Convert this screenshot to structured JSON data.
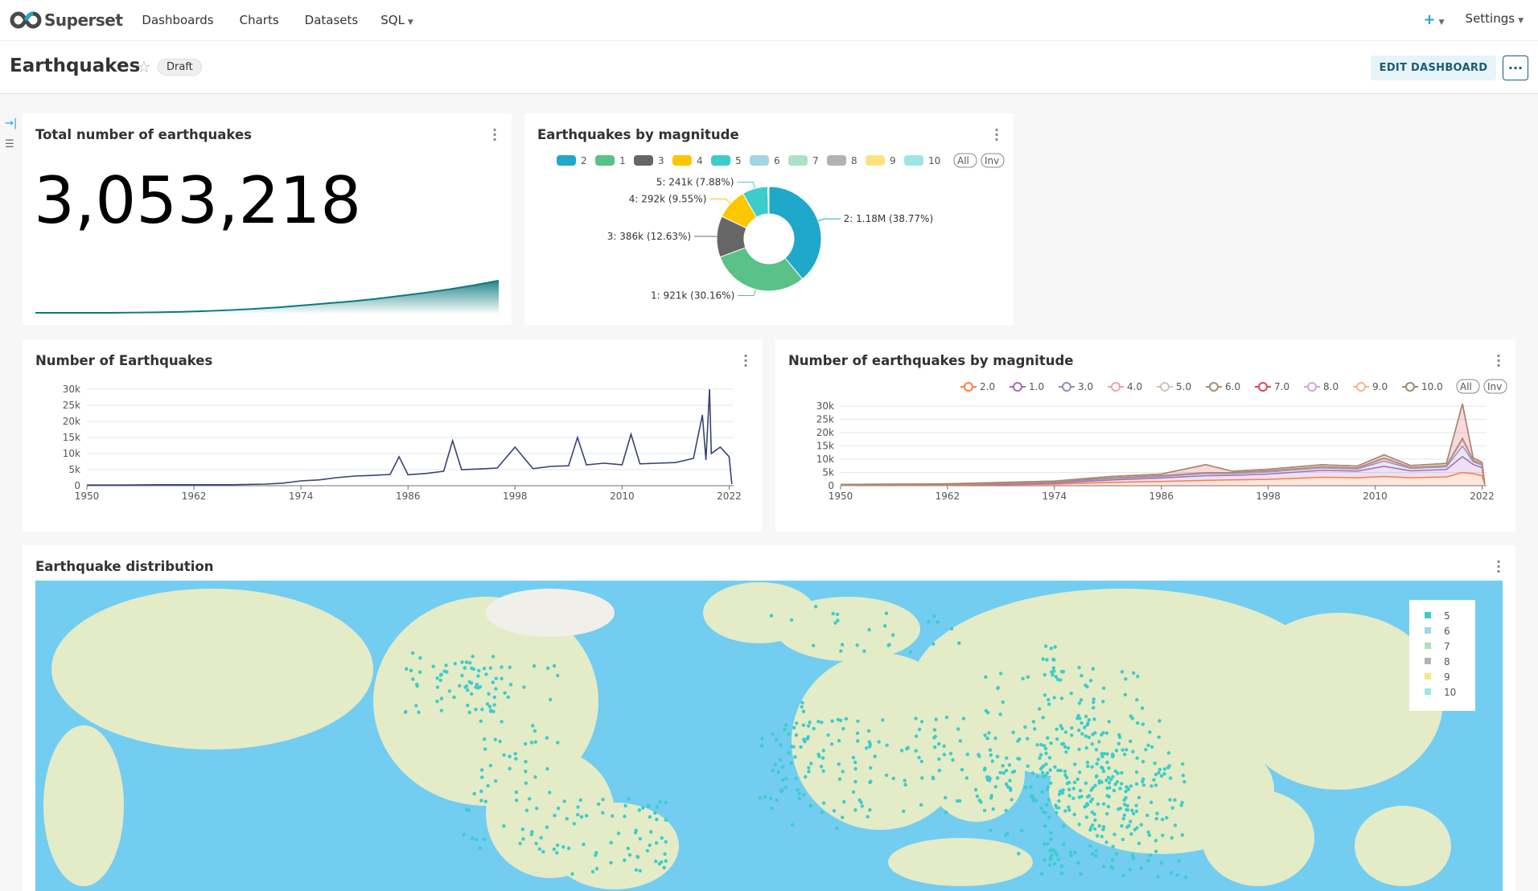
{
  "nav": {
    "brand": "Superset",
    "items": [
      "Dashboards",
      "Charts",
      "Datasets",
      "SQL"
    ],
    "plus": "+",
    "settings": "Settings"
  },
  "header": {
    "title": "Earthquakes",
    "status": "Draft",
    "edit": "EDIT DASHBOARD",
    "more": "···"
  },
  "big_number": {
    "title": "Total number of earthquakes",
    "value": "3,053,218",
    "trend": [
      0,
      0,
      0,
      0,
      1,
      2,
      4,
      7,
      11,
      16,
      22,
      30,
      38,
      46,
      56,
      68,
      80,
      94,
      110,
      128
    ]
  },
  "colors": {
    "accent": "#20a7c9",
    "trend": "#0c7a80"
  },
  "chart_data": [
    {
      "type": "pie",
      "title": "Earthquakes by magnitude",
      "donut": true,
      "slices": [
        {
          "name": "2",
          "value": 1180000,
          "label": "2: 1.18M (38.77%)",
          "color": "#1FA8C9"
        },
        {
          "name": "1",
          "value": 921000,
          "label": "1: 921k (30.16%)",
          "color": "#5AC189"
        },
        {
          "name": "3",
          "value": 386000,
          "label": "3: 386k (12.63%)",
          "color": "#666666"
        },
        {
          "name": "4",
          "value": 292000,
          "label": "4: 292k (9.55%)",
          "color": "#FCC700"
        },
        {
          "name": "5",
          "value": 241000,
          "label": "5: 241k (7.88%)",
          "color": "#3CCCCB"
        },
        {
          "name": "6",
          "value": 8000,
          "label": "",
          "color": "#A1D5E7"
        },
        {
          "name": "7",
          "value": 2000,
          "label": "",
          "color": "#ACE1C4"
        },
        {
          "name": "8",
          "value": 500,
          "label": "",
          "color": "#B2B2B2"
        },
        {
          "name": "9",
          "value": 100,
          "label": "",
          "color": "#FDE380"
        },
        {
          "name": "10",
          "value": 50,
          "label": "",
          "color": "#9EE5E5"
        }
      ],
      "legend_order": [
        "2",
        "1",
        "3",
        "4",
        "5",
        "6",
        "7",
        "8",
        "9",
        "10"
      ],
      "legend_buttons": [
        "All",
        "Inv"
      ],
      "legend": "top"
    },
    {
      "type": "line",
      "title": "Number of Earthquakes",
      "ylim": [
        0,
        30000
      ],
      "yticks": [
        "0",
        "5k",
        "10k",
        "15k",
        "20k",
        "25k",
        "30k"
      ],
      "xticks": [
        "1950",
        "1962",
        "1974",
        "1986",
        "1998",
        "2010",
        "2022"
      ],
      "xlim": [
        1950,
        2022.5
      ],
      "color": "#374375",
      "x": [
        1950,
        1954,
        1958,
        1962,
        1966,
        1970,
        1972,
        1974,
        1976,
        1978,
        1980,
        1982,
        1984,
        1985,
        1986,
        1988,
        1990,
        1991,
        1992,
        1994,
        1996,
        1998,
        2000,
        2002,
        2004,
        2005,
        2006,
        2008,
        2010,
        2011,
        2012,
        2014,
        2016,
        2018,
        2019,
        2019.4,
        2019.8,
        2020,
        2021,
        2022,
        2022.3
      ],
      "y": [
        200,
        200,
        300,
        300,
        300,
        500,
        800,
        1500,
        1800,
        2500,
        3000,
        3200,
        3500,
        9000,
        3400,
        3800,
        4500,
        14000,
        5000,
        5200,
        5500,
        12000,
        5300,
        6000,
        6200,
        15000,
        6500,
        7000,
        6500,
        16000,
        6800,
        7000,
        7200,
        8500,
        22000,
        8000,
        30000,
        10000,
        12000,
        9000,
        500
      ]
    },
    {
      "type": "line",
      "stacked": true,
      "area": true,
      "title": "Number of earthquakes by magnitude",
      "ylim": [
        0,
        30000
      ],
      "yticks": [
        "0",
        "5k",
        "10k",
        "15k",
        "20k",
        "25k",
        "30k"
      ],
      "xticks": [
        "1950",
        "1962",
        "1974",
        "1986",
        "1998",
        "2010",
        "2022"
      ],
      "xlim": [
        1950,
        2022.5
      ],
      "legend": "top",
      "legend_buttons": [
        "All",
        "Inv"
      ],
      "x": [
        1950,
        1962,
        1974,
        1980,
        1986,
        1991,
        1994,
        1998,
        2004,
        2008,
        2011,
        2014,
        2018,
        2019.8,
        2021,
        2022,
        2022.3
      ],
      "series": [
        {
          "name": "2.0",
          "color": "#FF7F44",
          "values": [
            100,
            150,
            600,
            1200,
            1600,
            2000,
            2200,
            2400,
            3200,
            3000,
            3500,
            3000,
            3300,
            5000,
            4500,
            3800,
            300
          ]
        },
        {
          "name": "1.0",
          "color": "#A868B7",
          "values": [
            50,
            80,
            400,
            900,
            1300,
            1800,
            1700,
            2000,
            2600,
            2500,
            3800,
            2600,
            2800,
            6000,
            3500,
            3000,
            100
          ]
        },
        {
          "name": "3.0",
          "color": "#8E8EBF",
          "values": [
            30,
            40,
            300,
            500,
            600,
            800,
            700,
            800,
            900,
            800,
            2000,
            900,
            1000,
            4000,
            1000,
            900,
            50
          ]
        },
        {
          "name": "4.0",
          "color": "#EFA1AA",
          "values": [
            10,
            20,
            100,
            150,
            200,
            250,
            250,
            300,
            300,
            300,
            800,
            300,
            300,
            2000,
            400,
            300,
            20
          ]
        },
        {
          "name": "5.0",
          "color": "#D3C1B3",
          "values": [
            5,
            10,
            40,
            60,
            70,
            80,
            80,
            90,
            100,
            100,
            300,
            100,
            100,
            800,
            150,
            100,
            10
          ]
        },
        {
          "name": "6.0",
          "color": "#A38F79",
          "values": [
            1,
            1,
            5,
            8,
            10,
            10,
            10,
            10,
            10,
            10,
            30,
            10,
            10,
            80,
            20,
            10,
            1
          ]
        },
        {
          "name": "7.0",
          "color": "#E04355",
          "values": [
            300,
            400,
            300,
            600,
            600,
            3000,
            500,
            600,
            800,
            700,
            1200,
            700,
            900,
            13000,
            900,
            700,
            20
          ]
        },
        {
          "name": "8.0",
          "color": "#D1A6DE",
          "values": [
            0,
            0,
            0,
            0,
            0,
            0,
            0,
            0,
            0,
            0,
            0,
            0,
            0,
            0,
            0,
            0,
            0
          ]
        },
        {
          "name": "9.0",
          "color": "#FDB28B",
          "values": [
            0,
            0,
            0,
            0,
            0,
            0,
            0,
            0,
            0,
            0,
            0,
            0,
            0,
            0,
            0,
            0,
            0
          ]
        },
        {
          "name": "10.0",
          "color": "#9C8A70",
          "values": [
            0,
            0,
            0,
            0,
            0,
            0,
            0,
            0,
            0,
            0,
            0,
            0,
            0,
            0,
            0,
            0,
            0
          ]
        }
      ]
    }
  ],
  "map": {
    "title": "Earthquake distribution",
    "legend": [
      {
        "label": "5",
        "color": "#3CCCCB"
      },
      {
        "label": "6",
        "color": "#A1D5E7"
      },
      {
        "label": "7",
        "color": "#ACE1C4"
      },
      {
        "label": "8",
        "color": "#B2B2B2"
      },
      {
        "label": "9",
        "color": "#FDE380"
      },
      {
        "label": "10",
        "color": "#9EE5E5"
      }
    ]
  }
}
